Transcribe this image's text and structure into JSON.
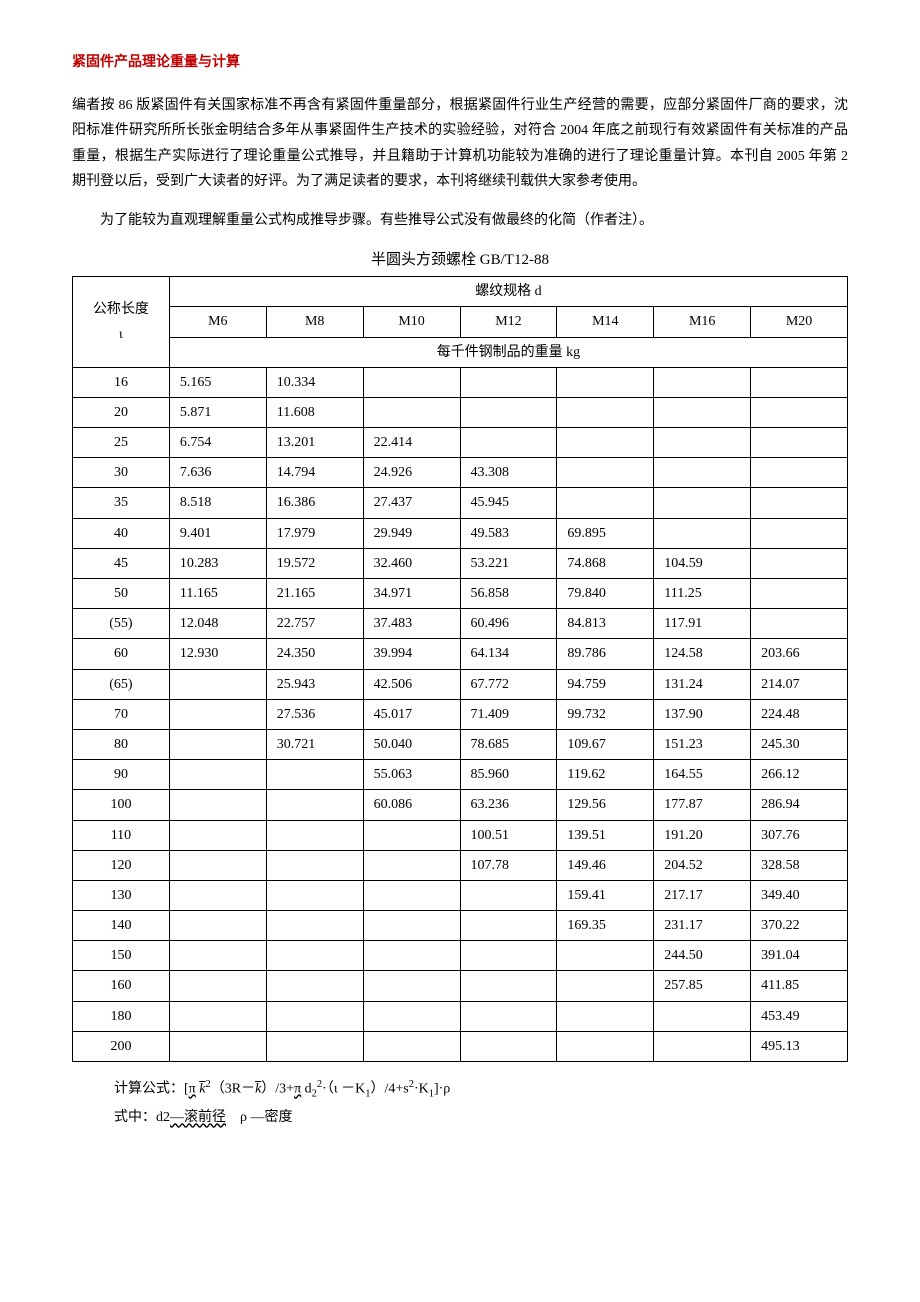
{
  "title": "紧固件产品理论重量与计算",
  "para1": "编者按 86 版紧固件有关国家标准不再含有紧固件重量部分，根据紧固件行业生产经营的需要，应部分紧固件厂商的要求，沈阳标准件研究所所长张金明结合多年从事紧固件生产技术的实验经验，对符合 2004 年底之前现行有效紧固件有关标准的产品重量，根据生产实际进行了理论重量公式推导，并且籍助于计算机功能较为准确的进行了理论重量计算。本刊自 2005 年第 2 期刊登以后，受到广大读者的好评。为了满足读者的要求，本刊将继续刊载供大家参考使用。",
  "para2": "为了能较为直观理解重量公式构成推导步骤。有些推导公式没有做最终的化简（作者注）。",
  "table": {
    "title": "半圆头方颈螺栓 GB/T12-88",
    "corner_label_line1": "公称长度",
    "corner_label_line2": "ι",
    "header_top": "螺纹规格 d",
    "columns": [
      "M6",
      "M8",
      "M10",
      "M12",
      "M14",
      "M16",
      "M20"
    ],
    "subheader": "每千件钢制品的重量 kg",
    "rows": [
      {
        "l": "16",
        "v": [
          "5.165",
          "10.334",
          "",
          "",
          "",
          "",
          ""
        ]
      },
      {
        "l": "20",
        "v": [
          "5.871",
          "11.608",
          "",
          "",
          "",
          "",
          ""
        ]
      },
      {
        "l": "25",
        "v": [
          "6.754",
          "13.201",
          "22.414",
          "",
          "",
          "",
          ""
        ]
      },
      {
        "l": "30",
        "v": [
          "7.636",
          "14.794",
          "24.926",
          "43.308",
          "",
          "",
          ""
        ]
      },
      {
        "l": "35",
        "v": [
          "8.518",
          "16.386",
          "27.437",
          "45.945",
          "",
          "",
          ""
        ]
      },
      {
        "l": "40",
        "v": [
          "9.401",
          "17.979",
          "29.949",
          "49.583",
          "69.895",
          "",
          ""
        ]
      },
      {
        "l": "45",
        "v": [
          "10.283",
          "19.572",
          "32.460",
          "53.221",
          "74.868",
          "104.59",
          ""
        ]
      },
      {
        "l": "50",
        "v": [
          "11.165",
          "21.165",
          "34.971",
          "56.858",
          "79.840",
          "111.25",
          ""
        ]
      },
      {
        "l": "(55)",
        "v": [
          "12.048",
          "22.757",
          "37.483",
          "60.496",
          "84.813",
          "117.91",
          ""
        ]
      },
      {
        "l": "60",
        "v": [
          "12.930",
          "24.350",
          "39.994",
          "64.134",
          "89.786",
          "124.58",
          "203.66"
        ]
      },
      {
        "l": "(65)",
        "v": [
          "",
          "25.943",
          "42.506",
          "67.772",
          "94.759",
          "131.24",
          "214.07"
        ]
      },
      {
        "l": "70",
        "v": [
          "",
          "27.536",
          "45.017",
          "71.409",
          "99.732",
          "137.90",
          "224.48"
        ]
      },
      {
        "l": "80",
        "v": [
          "",
          "30.721",
          "50.040",
          "78.685",
          "109.67",
          "151.23",
          "245.30"
        ]
      },
      {
        "l": "90",
        "v": [
          "",
          "",
          "55.063",
          "85.960",
          "119.62",
          "164.55",
          "266.12"
        ]
      },
      {
        "l": "100",
        "v": [
          "",
          "",
          "60.086",
          "63.236",
          "129.56",
          "177.87",
          "286.94"
        ]
      },
      {
        "l": "110",
        "v": [
          "",
          "",
          "",
          "100.51",
          "139.51",
          "191.20",
          "307.76"
        ]
      },
      {
        "l": "120",
        "v": [
          "",
          "",
          "",
          "107.78",
          "149.46",
          "204.52",
          "328.58"
        ]
      },
      {
        "l": "130",
        "v": [
          "",
          "",
          "",
          "",
          "159.41",
          "217.17",
          "349.40"
        ]
      },
      {
        "l": "140",
        "v": [
          "",
          "",
          "",
          "",
          "169.35",
          "231.17",
          "370.22"
        ]
      },
      {
        "l": "150",
        "v": [
          "",
          "",
          "",
          "",
          "",
          "244.50",
          "391.04"
        ]
      },
      {
        "l": "160",
        "v": [
          "",
          "",
          "",
          "",
          "",
          "257.85",
          "411.85"
        ]
      },
      {
        "l": "180",
        "v": [
          "",
          "",
          "",
          "",
          "",
          "",
          "453.49"
        ]
      },
      {
        "l": "200",
        "v": [
          "",
          "",
          "",
          "",
          "",
          "",
          "495.13"
        ]
      }
    ]
  },
  "formula": {
    "prefix": "计算公式：[",
    "pi1": "π",
    "k1": "k",
    "sq1": "2",
    "lp": "（3R－",
    "k2": "k",
    "rp": "）/3+",
    "pi2": "π",
    "d2": "d",
    "d2sub": "2",
    "d2sup": "2",
    "mid": "·（ι －K",
    "K1sub": "1",
    "mid2": "）/4+",
    "s": "s",
    "ssup": "2",
    "dotK": "·K",
    "K1sub2": "1",
    "tail": "]·ρ",
    "line2_a": "式中：d2",
    "line2_b": "—滚前径",
    "line2_gap": " ",
    "line2_c": "ρ —密度"
  }
}
